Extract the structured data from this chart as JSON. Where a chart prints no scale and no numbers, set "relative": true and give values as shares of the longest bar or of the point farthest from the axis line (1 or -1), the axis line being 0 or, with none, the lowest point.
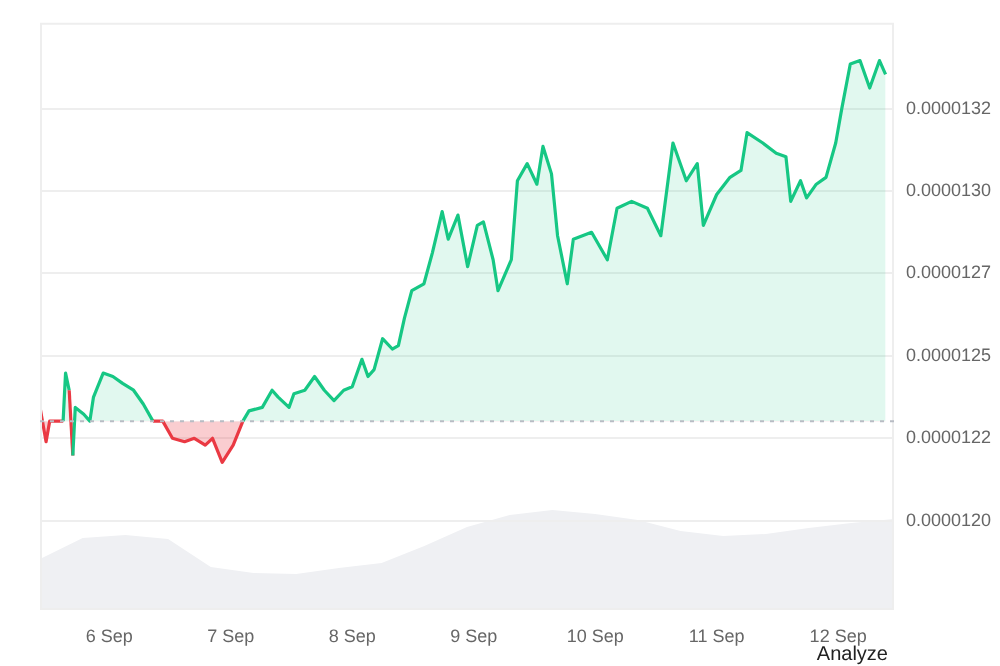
{
  "chart_data": [
    {
      "type": "area",
      "x": [
        "--09-05T10:19",
        "--09-05T11:31",
        "--09-05T12:14",
        "--09-05T14:53",
        "--09-05T15:22",
        "--09-05T16:05",
        "--09-05T16:48",
        "--09-05T17:17",
        "--09-05T18:58",
        "--09-05T20:10",
        "--09-05T20:53",
        "--09-05T22:48",
        "--09-06T00:43",
        "--09-06T02:38",
        "--09-06T04:48",
        "--09-06T06:43",
        "--09-06T08:38",
        "--09-06T10:34",
        "--09-06T12:29",
        "--09-06T14:53",
        "--09-06T16:48",
        "--09-06T18:58",
        "--09-06T20:24",
        "--09-06T22:19",
        "--09-07T00:29",
        "--09-07T02:24",
        "--09-07T03:36",
        "--09-07T06:14",
        "--09-07T08:10",
        "--09-07T09:22",
        "--09-07T11:31",
        "--09-07T12:29",
        "--09-07T14:38",
        "--09-07T16:34",
        "--09-07T18:29",
        "--09-07T20:24",
        "--09-07T22:19",
        "--09-08T00:00",
        "--09-08T01:55",
        "--09-08T03:07",
        "--09-08T04:19",
        "--09-08T06:00",
        "--09-08T07:55",
        "--09-08T09:07",
        "--09-08T10:19",
        "--09-08T11:46",
        "--09-08T14:10",
        "--09-08T15:50",
        "--09-08T17:46",
        "--09-08T18:58",
        "--09-08T20:53",
        "--09-08T22:48",
        "--09-09T00:43",
        "--09-09T01:55",
        "--09-09T03:50",
        "--09-09T04:48",
        "--09-09T07:26",
        "--09-09T08:38",
        "--09-09T10:34",
        "--09-09T12:29",
        "--09-09T13:41",
        "--09-09T15:22",
        "--09-09T16:34",
        "--09-09T18:29",
        "--09-09T19:41",
        "--09-09T23:17",
        "--09-10T02:24",
        "--09-10T04:19",
        "--09-10T07:12",
        "--09-10T10:19",
        "--09-10T12:58",
        "--09-10T15:22",
        "--09-10T18:00",
        "--09-10T20:10",
        "--09-10T21:22",
        "--09-11T00:00",
        "--09-11T02:38",
        "--09-11T04:48",
        "--09-11T06:00",
        "--09-11T09:07",
        "--09-11T11:46",
        "--09-11T13:41",
        "--09-11T14:38",
        "--09-11T16:34",
        "--09-11T17:46",
        "--09-11T19:41",
        "--09-11T21:36",
        "--09-11T23:31",
        "--09-12T00:43",
        "--09-12T02:24",
        "--09-12T04:19",
        "--09-12T06:14",
        "--09-12T08:10",
        "--09-12T09:22"
      ],
      "series": [
        {
          "color": "#16c784",
          "values": [
            1.233e-05,
            1.223e-05,
            1.229e-05,
            1.229e-05,
            1.243e-05,
            1.238e-05,
            1.219e-05,
            1.233e-05,
            1.231e-05,
            1.229e-05,
            1.236e-05,
            1.243e-05,
            1.242e-05,
            1.24e-05,
            1.238e-05,
            1.234e-05,
            1.229e-05,
            1.229e-05,
            1.224e-05,
            1.223e-05,
            1.224e-05,
            1.222e-05,
            1.224e-05,
            1.217e-05,
            1.222e-05,
            1.229e-05,
            1.232e-05,
            1.233e-05,
            1.238e-05,
            1.236e-05,
            1.233e-05,
            1.237e-05,
            1.238e-05,
            1.242e-05,
            1.238e-05,
            1.235e-05,
            1.238e-05,
            1.239e-05,
            1.247e-05,
            1.242e-05,
            1.244e-05,
            1.253e-05,
            1.25e-05,
            1.251e-05,
            1.259e-05,
            1.267e-05,
            1.269e-05,
            1.278e-05,
            1.29e-05,
            1.282e-05,
            1.289e-05,
            1.274e-05,
            1.286e-05,
            1.287e-05,
            1.276e-05,
            1.267e-05,
            1.276e-05,
            1.299e-05,
            1.304e-05,
            1.298e-05,
            1.309e-05,
            1.301e-05,
            1.283e-05,
            1.269e-05,
            1.282e-05,
            1.284e-05,
            1.276e-05,
            1.291e-05,
            1.293e-05,
            1.291e-05,
            1.283e-05,
            1.31e-05,
            1.299e-05,
            1.304e-05,
            1.286e-05,
            1.295e-05,
            1.3e-05,
            1.302e-05,
            1.313e-05,
            1.31e-05,
            1.307e-05,
            1.306e-05,
            1.293e-05,
            1.299e-05,
            1.294e-05,
            1.298e-05,
            1.3e-05,
            1.31e-05,
            1.32e-05,
            1.333e-05,
            1.334e-05,
            1.326e-05,
            1.334e-05,
            1.33e-05
          ],
          "colors": [
            "#16c784",
            "#ea3943",
            "#ea3943",
            "#ea3943",
            "#16c784",
            "#16c784",
            "#ea3943",
            "#16c784",
            "#16c784",
            "#16c784",
            "#16c784",
            "#16c784",
            "#16c784",
            "#16c784",
            "#16c784",
            "#16c784",
            "#16c784",
            "#ea3943",
            "#ea3943",
            "#ea3943",
            "#ea3943",
            "#ea3943",
            "#ea3943",
            "#ea3943",
            "#ea3943",
            "#ea3943",
            "#16c784",
            "#16c784",
            "#16c784",
            "#16c784",
            "#16c784",
            "#16c784",
            "#16c784",
            "#16c784",
            "#16c784",
            "#16c784",
            "#16c784",
            "#16c784",
            "#16c784",
            "#16c784",
            "#16c784",
            "#16c784",
            "#16c784",
            "#16c784",
            "#16c784",
            "#16c784",
            "#16c784",
            "#16c784",
            "#16c784",
            "#16c784",
            "#16c784",
            "#16c784",
            "#16c784",
            "#16c784",
            "#16c784",
            "#16c784",
            "#16c784",
            "#16c784",
            "#16c784",
            "#16c784",
            "#16c784",
            "#16c784",
            "#16c784",
            "#16c784",
            "#16c784",
            "#16c784",
            "#16c784",
            "#16c784",
            "#16c784",
            "#16c784",
            "#16c784",
            "#16c784",
            "#16c784",
            "#16c784",
            "#16c784",
            "#16c784",
            "#16c784",
            "#16c784",
            "#16c784",
            "#16c784",
            "#16c784",
            "#16c784",
            "#16c784",
            "#16c784",
            "#16c784",
            "#16c784",
            "#16c784",
            "#16c784",
            "#16c784",
            "#16c784",
            "#16c784",
            "#16c784",
            "#16c784",
            "#16c784"
          ]
        }
      ],
      "xlim": [
        "--09-05T10:19",
        "--09-12T11:02"
      ],
      "xticks": [
        {
          "value": "--09-06",
          "label": "6 Sep"
        },
        {
          "value": "--09-07",
          "label": "7 Sep"
        },
        {
          "value": "--09-08",
          "label": "8 Sep"
        },
        {
          "value": "--09-09",
          "label": "9 Sep"
        },
        {
          "value": "--09-10",
          "label": "10 Sep"
        },
        {
          "value": "--09-11",
          "label": "11 Sep"
        },
        {
          "value": "--09-12",
          "label": "12 Sep"
        }
      ],
      "ylim": [
        1.174e-05,
        1.345e-05
      ],
      "yticks": [
        {
          "value": 1.2e-05,
          "label": "0.0000120"
        },
        {
          "value": 1.224e-05,
          "label": "0.0000122"
        },
        {
          "value": 1.248e-05,
          "label": "0.0000125"
        },
        {
          "value": 1.272e-05,
          "label": "0.0000127"
        },
        {
          "value": 1.296e-05,
          "label": "0.0000130"
        },
        {
          "value": 1.32e-05,
          "label": "0.0000132"
        }
      ],
      "ref_lines": [
        {
          "axis": "y",
          "value": 1.229e-05,
          "color": "#b8bcc4",
          "line_style": "dotted"
        }
      ],
      "grid": "y",
      "legend": false,
      "marker": "none",
      "annotations": [
        "Analyze"
      ]
    },
    {
      "type": "area",
      "relative": true,
      "categories": [
        null,
        null,
        null,
        null,
        null,
        null,
        null,
        null,
        null,
        null,
        null,
        null,
        null,
        null,
        null,
        null,
        null,
        null,
        null,
        null,
        null
      ],
      "series": [
        {
          "color": "#eff0f3",
          "values": [
            0.51,
            0.72,
            0.75,
            0.71,
            0.43,
            0.37,
            0.36,
            0.42,
            0.47,
            0.64,
            0.83,
            0.95,
            1,
            0.96,
            0.9,
            0.79,
            0.74,
            0.76,
            0.82,
            0.87,
            0.91
          ]
        }
      ],
      "tick_labels": false,
      "legend": false,
      "marker": "none"
    }
  ]
}
